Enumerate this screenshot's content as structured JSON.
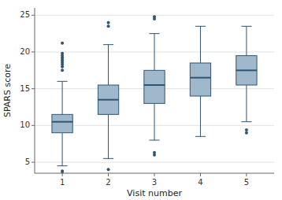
{
  "chart_data": {
    "type": "box",
    "xlabel": "Visit number",
    "ylabel": "SPARS score",
    "x": [
      1,
      2,
      3,
      4,
      5
    ],
    "boxes": [
      {
        "med": 10.5,
        "q1": 9.0,
        "q3": 11.5,
        "whislo": 4.5,
        "whishi": 16.0,
        "fliers": [
          3.5,
          3.8,
          17.5,
          18.0,
          18.3,
          18.6,
          18.9,
          19.2,
          19.5,
          19.8,
          21.2
        ]
      },
      {
        "med": 13.5,
        "q1": 11.5,
        "q3": 15.5,
        "whislo": 5.5,
        "whishi": 21.0,
        "fliers": [
          4.0,
          23.5,
          24.0
        ]
      },
      {
        "med": 15.5,
        "q1": 13.0,
        "q3": 17.5,
        "whislo": 8.0,
        "whishi": 22.5,
        "fliers": [
          6.0,
          6.3,
          24.5,
          24.8
        ]
      },
      {
        "med": 16.5,
        "q1": 14.0,
        "q3": 18.5,
        "whislo": 8.5,
        "whishi": 23.5,
        "fliers": []
      },
      {
        "med": 17.5,
        "q1": 15.5,
        "q3": 19.5,
        "whislo": 10.5,
        "whishi": 23.5,
        "fliers": [
          9.0,
          9.4
        ]
      }
    ],
    "color": "#a0b8cc",
    "xlim": [
      0.4,
      5.6
    ],
    "xticks": [
      1,
      2,
      3,
      4,
      5
    ],
    "ylim": [
      3.5,
      26
    ],
    "yticks": [
      5,
      10,
      15,
      20,
      25
    ],
    "grid": true
  }
}
